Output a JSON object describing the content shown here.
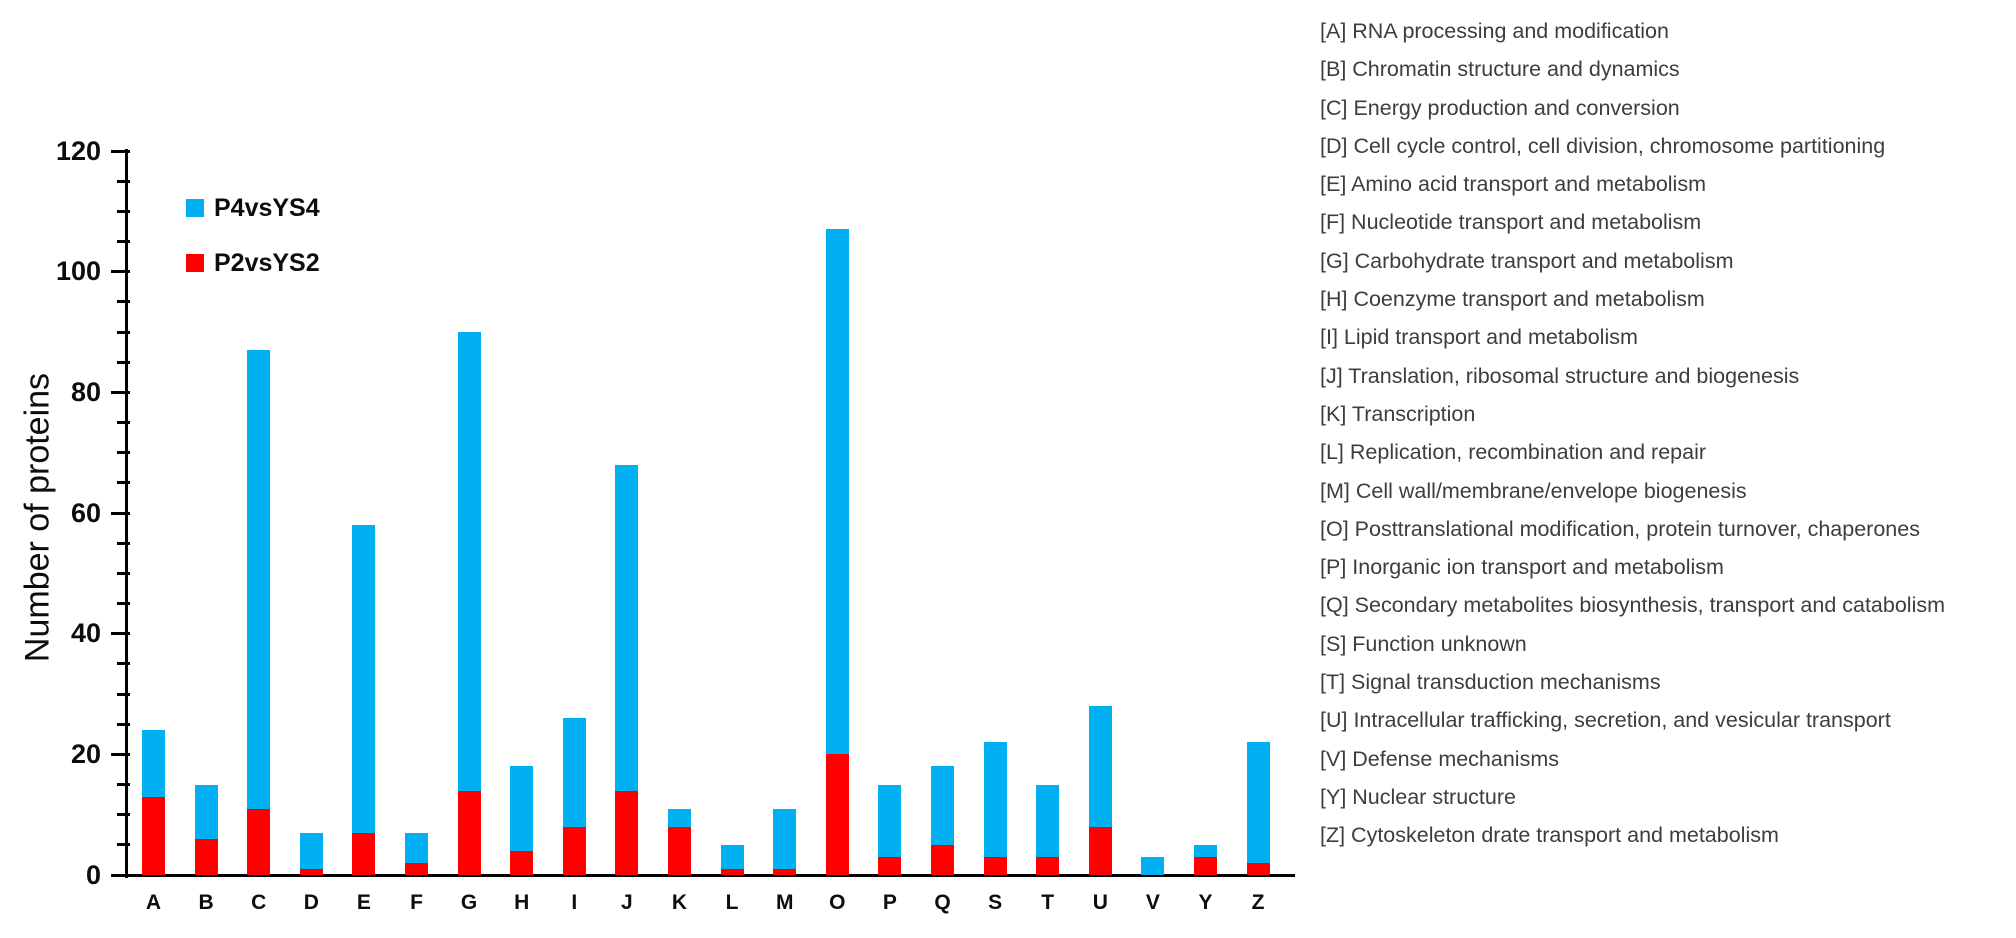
{
  "y_axis": {
    "title": "Number of proteins",
    "ylim": [
      0,
      120
    ],
    "major_step": 20,
    "minor_step": 5,
    "tick_labels": [
      "0",
      "20",
      "40",
      "60",
      "80",
      "100",
      "120"
    ]
  },
  "legend": [
    {
      "label": "P4vsYS4",
      "color": "#00B0F0"
    },
    {
      "label": "P2vsYS2",
      "color": "#FF0000"
    }
  ],
  "chart_data": {
    "type": "bar",
    "stacked": true,
    "title": "",
    "xlabel": "",
    "ylabel": "Number of proteins",
    "ylim": [
      0,
      120
    ],
    "grid": false,
    "legend_position": "upper-left-inside",
    "categories": [
      "A",
      "B",
      "C",
      "D",
      "E",
      "F",
      "G",
      "H",
      "I",
      "J",
      "K",
      "L",
      "M",
      "O",
      "P",
      "Q",
      "S",
      "T",
      "U",
      "V",
      "Y",
      "Z"
    ],
    "series": [
      {
        "name": "P2vsYS2",
        "color": "#FF0000",
        "stack_order": "bottom",
        "values": [
          13,
          6,
          11,
          1,
          7,
          2,
          14,
          4,
          8,
          14,
          8,
          1,
          1,
          20,
          3,
          5,
          3,
          3,
          8,
          0,
          3,
          2
        ]
      },
      {
        "name": "P4vsYS4",
        "color": "#00B0F0",
        "stack_order": "top",
        "values": [
          11,
          9,
          76,
          6,
          51,
          5,
          76,
          14,
          18,
          54,
          3,
          4,
          10,
          87,
          12,
          13,
          19,
          12,
          20,
          3,
          2,
          20
        ]
      }
    ],
    "totals": [
      24,
      15,
      87,
      7,
      58,
      7,
      90,
      18,
      26,
      68,
      11,
      5,
      11,
      107,
      15,
      18,
      22,
      15,
      28,
      3,
      5,
      22
    ]
  },
  "cog_list": {
    "items": [
      "[A] RNA processing and modification",
      "[B] Chromatin structure and dynamics",
      "[C] Energy production and conversion",
      "[D] Cell cycle control, cell division, chromosome partitioning",
      "[E] Amino acid transport and metabolism",
      "[F] Nucleotide transport and metabolism",
      "[G] Carbohydrate transport and metabolism",
      "[H] Coenzyme transport and metabolism",
      "[I] Lipid transport and metabolism",
      "[J] Translation, ribosomal structure and biogenesis",
      "[K] Transcription",
      "[L] Replication, recombination and repair",
      "[M] Cell wall/membrane/envelope biogenesis",
      "[O] Posttranslational modification, protein turnover, chaperones",
      "[P] Inorganic ion transport and metabolism",
      "[Q] Secondary metabolites biosynthesis, transport and catabolism",
      "[S] Function unknown",
      "[T] Signal transduction mechanisms",
      "[U] Intracellular trafficking, secretion, and vesicular transport",
      "[V] Defense mechanisms",
      "[Y] Nuclear structure",
      "[Z] Cytoskeleton drate transport and metabolism"
    ]
  }
}
